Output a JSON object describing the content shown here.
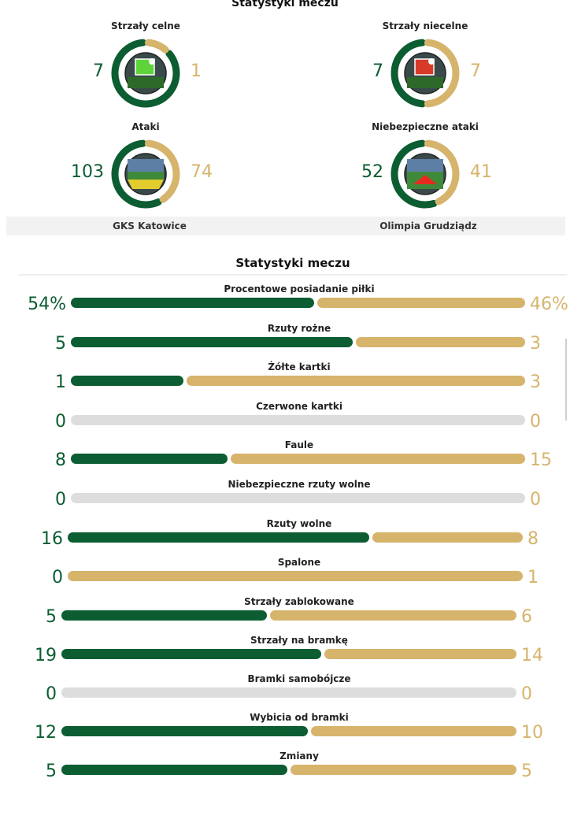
{
  "header": {
    "title": "Statystyki meczu"
  },
  "rings": [
    {
      "label": "Strzały celne",
      "home": "7",
      "away": "1",
      "home_frac": 0.875,
      "away_frac": 0.125,
      "icon": "goal-green-icon"
    },
    {
      "label": "Strzały niecelne",
      "home": "7",
      "away": "7",
      "home_frac": 0.5,
      "away_frac": 0.5,
      "icon": "goal-red-icon"
    },
    {
      "label": "Ataki",
      "home": "103",
      "away": "74",
      "home_frac": 0.582,
      "away_frac": 0.418,
      "icon": "stadium-icon"
    },
    {
      "label": "Niebezpieczne ataki",
      "home": "52",
      "away": "41",
      "home_frac": 0.559,
      "away_frac": 0.441,
      "icon": "danger-zone-icon"
    }
  ],
  "teams": {
    "home": "GKS Katowice",
    "away": "Olimpia Grudziądz"
  },
  "stats_section": {
    "title": "Statystyki meczu",
    "rows": [
      {
        "label": "Procentowe posiadanie piłki",
        "home": "54%",
        "away": "46%",
        "home_val": 54,
        "away_val": 46
      },
      {
        "label": "Rzuty rożne",
        "home": "5",
        "away": "3",
        "home_val": 5,
        "away_val": 3
      },
      {
        "label": "Żółte kartki",
        "home": "1",
        "away": "3",
        "home_val": 1,
        "away_val": 3
      },
      {
        "label": "Czerwone kartki",
        "home": "0",
        "away": "0",
        "home_val": 0,
        "away_val": 0
      },
      {
        "label": "Faule",
        "home": "8",
        "away": "15",
        "home_val": 8,
        "away_val": 15
      },
      {
        "label": "Niebezpieczne rzuty wolne",
        "home": "0",
        "away": "0",
        "home_val": 0,
        "away_val": 0
      },
      {
        "label": "Rzuty wolne",
        "home": "16",
        "away": "8",
        "home_val": 16,
        "away_val": 8
      },
      {
        "label": "Spalone",
        "home": "0",
        "away": "1",
        "home_val": 0,
        "away_val": 1
      },
      {
        "label": "Strzały zablokowane",
        "home": "5",
        "away": "6",
        "home_val": 5,
        "away_val": 6
      },
      {
        "label": "Strzały na bramkę",
        "home": "19",
        "away": "14",
        "home_val": 19,
        "away_val": 14
      },
      {
        "label": "Bramki samobójcze",
        "home": "0",
        "away": "0",
        "home_val": 0,
        "away_val": 0
      },
      {
        "label": "Wybicia od bramki",
        "home": "12",
        "away": "10",
        "home_val": 12,
        "away_val": 10
      },
      {
        "label": "Zmiany",
        "home": "5",
        "away": "5",
        "home_val": 5,
        "away_val": 5
      }
    ]
  },
  "colors": {
    "home": "#0c5d32",
    "away": "#d6b46c",
    "empty": "#dddddd"
  }
}
